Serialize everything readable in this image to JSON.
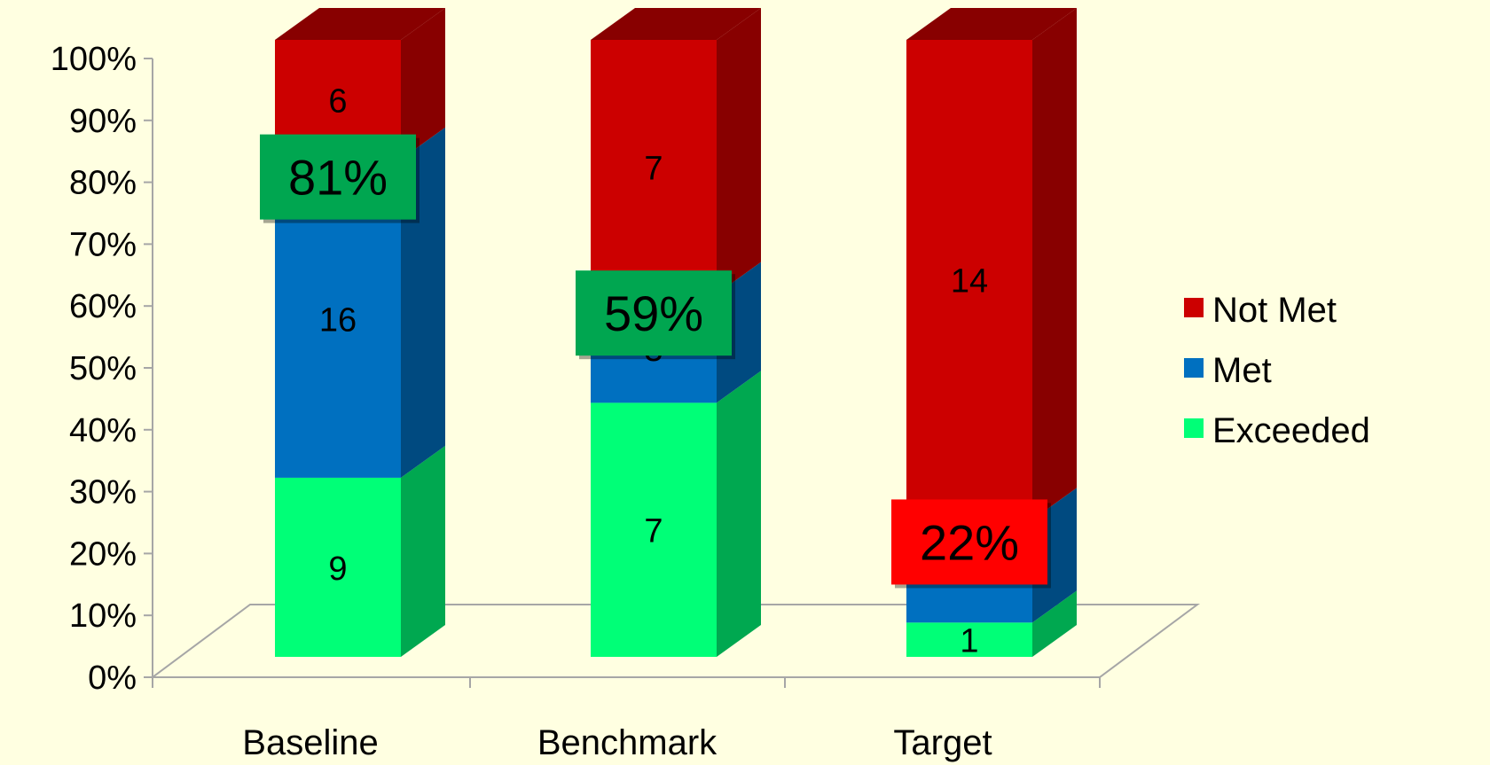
{
  "chart_data": {
    "type": "bar",
    "stacked": true,
    "percent_stacked": true,
    "three_d": true,
    "categories": [
      "Baseline",
      "Benchmark",
      "Target"
    ],
    "series": [
      {
        "name": "Exceeded",
        "values": [
          9,
          7,
          1
        ],
        "color": "#00FF77",
        "side_color": "#00A850"
      },
      {
        "name": "Met",
        "values": [
          16,
          3,
          3
        ],
        "color": "#0070C0",
        "side_color": "#004A80"
      },
      {
        "name": "Not Met",
        "values": [
          6,
          7,
          14
        ],
        "color": "#CC0000",
        "side_color": "#880000"
      }
    ],
    "y_ticks": [
      "0%",
      "10%",
      "20%",
      "30%",
      "40%",
      "50%",
      "60%",
      "70%",
      "80%",
      "90%",
      "100%"
    ],
    "ylim": [
      0,
      100
    ],
    "callouts": [
      {
        "category": "Baseline",
        "text": "81%",
        "level": 81,
        "color": "#00A650"
      },
      {
        "category": "Benchmark",
        "text": "59%",
        "level": 59,
        "color": "#00A650"
      },
      {
        "category": "Target",
        "text": "22%",
        "level": 22,
        "color": "#FF0000"
      }
    ],
    "legend_position": "right",
    "grid": false
  }
}
